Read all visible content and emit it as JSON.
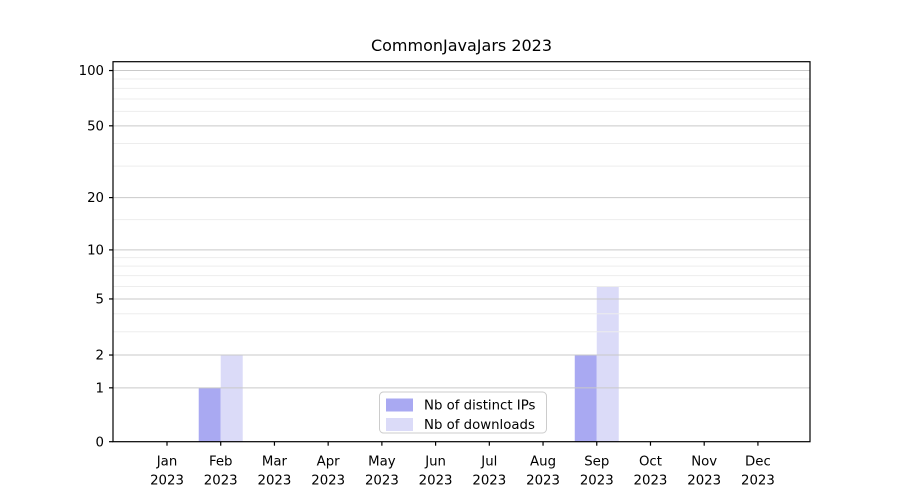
{
  "chart_data": {
    "type": "bar",
    "title": "CommonJavaJars 2023",
    "x_tick_year": "2023",
    "categories": [
      "Jan",
      "Feb",
      "Mar",
      "Apr",
      "May",
      "Jun",
      "Jul",
      "Aug",
      "Sep",
      "Oct",
      "Nov",
      "Dec"
    ],
    "series": [
      {
        "name": "Nb of distinct IPs",
        "color": "#a9a9f2",
        "values": [
          0,
          1,
          0,
          0,
          0,
          0,
          0,
          0,
          2,
          0,
          0,
          0
        ]
      },
      {
        "name": "Nb of downloads",
        "color": "#dbdbf8",
        "values": [
          0,
          2,
          0,
          0,
          0,
          0,
          0,
          0,
          6,
          0,
          0,
          0
        ]
      }
    ],
    "yscale": "log1p",
    "ylim": [
      0,
      110
    ],
    "yticks": [
      0,
      1,
      2,
      5,
      10,
      20,
      50,
      100
    ],
    "yticks_minor": [
      3,
      4,
      6,
      7,
      8,
      9,
      15,
      30,
      40,
      60,
      70,
      80,
      90
    ],
    "grid": "on",
    "legend_position": "bottom-center",
    "colors": {
      "grid_major": "#c9c9c9",
      "grid_minor": "#ededed",
      "axis": "#000000",
      "text": "#000000",
      "legend_border": "#cccccc",
      "background": "#ffffff"
    }
  }
}
